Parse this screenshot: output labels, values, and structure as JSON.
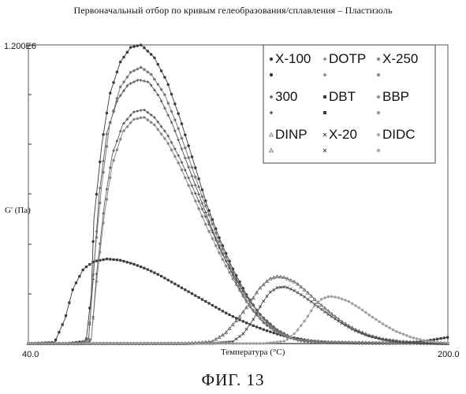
{
  "header": {
    "title": "Первоначальный отбор по кривым гелеобразования/сплавления – Пластизоль"
  },
  "caption": "ФИГ. 13",
  "chart_data": {
    "type": "line",
    "title": "Первоначальный отбор по кривым гелеобразования/сплавления – Пластизоль",
    "xlabel": "Температура (°C)",
    "ylabel": "G' (Па)",
    "xlim": [
      40,
      200
    ],
    "ylim": [
      0,
      1200000
    ],
    "x_tick_labels": [
      "40.0",
      "200.0"
    ],
    "y_tick_labels": [
      "1.200E6"
    ],
    "grid": false,
    "legend_position": "top-right",
    "series": [
      {
        "name": "X-100",
        "color": "#3a3a3a",
        "marker": "circle",
        "points": [
          [
            40,
            0
          ],
          [
            55,
            1000
          ],
          [
            62,
            10000
          ],
          [
            64,
            200000
          ],
          [
            65,
            500000
          ],
          [
            68,
            800000
          ],
          [
            71,
            1000000
          ],
          [
            75,
            1130000
          ],
          [
            79,
            1190000
          ],
          [
            83,
            1200000
          ],
          [
            88,
            1150000
          ],
          [
            93,
            1050000
          ],
          [
            98,
            900000
          ],
          [
            103,
            730000
          ],
          [
            108,
            560000
          ],
          [
            113,
            420000
          ],
          [
            118,
            300000
          ],
          [
            123,
            200000
          ],
          [
            128,
            120000
          ],
          [
            133,
            65000
          ],
          [
            138,
            30000
          ],
          [
            145,
            10000
          ],
          [
            155,
            3000
          ],
          [
            170,
            1000
          ],
          [
            200,
            0
          ]
        ]
      },
      {
        "name": "DOTP",
        "color": "#555555",
        "marker": "plus",
        "points": [
          [
            40,
            0
          ],
          [
            60,
            500
          ],
          [
            63,
            20000
          ],
          [
            65,
            300000
          ],
          [
            67,
            600000
          ],
          [
            70,
            850000
          ],
          [
            74,
            980000
          ],
          [
            78,
            1040000
          ],
          [
            82,
            1060000
          ],
          [
            86,
            1050000
          ],
          [
            90,
            990000
          ],
          [
            95,
            880000
          ],
          [
            100,
            740000
          ],
          [
            105,
            600000
          ],
          [
            110,
            460000
          ],
          [
            115,
            340000
          ],
          [
            120,
            230000
          ],
          [
            125,
            140000
          ],
          [
            130,
            80000
          ],
          [
            136,
            35000
          ],
          [
            143,
            12000
          ],
          [
            155,
            3000
          ],
          [
            200,
            0
          ]
        ]
      },
      {
        "name": "X-250",
        "color": "#707070",
        "marker": "star",
        "points": [
          [
            40,
            0
          ],
          [
            60,
            600
          ],
          [
            63,
            25000
          ],
          [
            65,
            320000
          ],
          [
            68,
            640000
          ],
          [
            71,
            880000
          ],
          [
            75,
            1030000
          ],
          [
            79,
            1090000
          ],
          [
            83,
            1110000
          ],
          [
            87,
            1080000
          ],
          [
            92,
            1000000
          ],
          [
            97,
            870000
          ],
          [
            102,
            720000
          ],
          [
            107,
            570000
          ],
          [
            112,
            430000
          ],
          [
            117,
            310000
          ],
          [
            122,
            210000
          ],
          [
            128,
            120000
          ],
          [
            134,
            60000
          ],
          [
            140,
            25000
          ],
          [
            150,
            7000
          ],
          [
            200,
            0
          ]
        ]
      },
      {
        "name": "300",
        "color": "#606060",
        "marker": "diamond",
        "points": [
          [
            40,
            0
          ],
          [
            62,
            400
          ],
          [
            64,
            15000
          ],
          [
            66,
            280000
          ],
          [
            69,
            560000
          ],
          [
            72,
            760000
          ],
          [
            76,
            880000
          ],
          [
            80,
            930000
          ],
          [
            84,
            940000
          ],
          [
            88,
            910000
          ],
          [
            93,
            840000
          ],
          [
            98,
            740000
          ],
          [
            103,
            620000
          ],
          [
            108,
            500000
          ],
          [
            113,
            380000
          ],
          [
            118,
            280000
          ],
          [
            123,
            190000
          ],
          [
            129,
            110000
          ],
          [
            135,
            55000
          ],
          [
            141,
            22000
          ],
          [
            150,
            7000
          ],
          [
            200,
            0
          ]
        ]
      },
      {
        "name": "DBT",
        "color": "#3a3a3a",
        "marker": "square",
        "points": [
          [
            40,
            0
          ],
          [
            50,
            5000
          ],
          [
            54,
            100000
          ],
          [
            57,
            220000
          ],
          [
            61,
            300000
          ],
          [
            65,
            330000
          ],
          [
            70,
            340000
          ],
          [
            75,
            335000
          ],
          [
            80,
            320000
          ],
          [
            85,
            300000
          ],
          [
            90,
            275000
          ],
          [
            95,
            245000
          ],
          [
            100,
            215000
          ],
          [
            105,
            185000
          ],
          [
            110,
            155000
          ],
          [
            115,
            125000
          ],
          [
            120,
            98000
          ],
          [
            125,
            75000
          ],
          [
            130,
            55000
          ],
          [
            135,
            38000
          ],
          [
            140,
            25000
          ],
          [
            147,
            12000
          ],
          [
            155,
            5000
          ],
          [
            165,
            1500
          ],
          [
            180,
            500
          ],
          [
            190,
            8000
          ],
          [
            200,
            25000
          ]
        ]
      },
      {
        "name": "BBP",
        "color": "#808080",
        "marker": "asterisk",
        "points": [
          [
            40,
            0
          ],
          [
            61,
            800
          ],
          [
            64,
            20000
          ],
          [
            66,
            250000
          ],
          [
            69,
            520000
          ],
          [
            72,
            720000
          ],
          [
            76,
            850000
          ],
          [
            80,
            900000
          ],
          [
            84,
            910000
          ],
          [
            88,
            880000
          ],
          [
            93,
            810000
          ],
          [
            98,
            710000
          ],
          [
            103,
            590000
          ],
          [
            108,
            470000
          ],
          [
            113,
            360000
          ],
          [
            118,
            260000
          ],
          [
            123,
            170000
          ],
          [
            129,
            95000
          ],
          [
            135,
            45000
          ],
          [
            142,
            16000
          ],
          [
            152,
            5000
          ],
          [
            200,
            0
          ]
        ]
      },
      {
        "name": "DINP",
        "color": "#6a6a6a",
        "marker": "triangle",
        "points": [
          [
            40,
            0
          ],
          [
            100,
            500
          ],
          [
            110,
            8000
          ],
          [
            115,
            40000
          ],
          [
            120,
            100000
          ],
          [
            125,
            170000
          ],
          [
            128,
            220000
          ],
          [
            132,
            260000
          ],
          [
            135,
            270000
          ],
          [
            138,
            265000
          ],
          [
            142,
            245000
          ],
          [
            146,
            210000
          ],
          [
            150,
            170000
          ],
          [
            155,
            125000
          ],
          [
            160,
            85000
          ],
          [
            165,
            55000
          ],
          [
            170,
            33000
          ],
          [
            175,
            18000
          ],
          [
            182,
            8000
          ],
          [
            190,
            3000
          ],
          [
            200,
            0
          ]
        ]
      },
      {
        "name": "X-20",
        "color": "#4a4a4a",
        "marker": "cross",
        "points": [
          [
            40,
            0
          ],
          [
            110,
            500
          ],
          [
            118,
            8000
          ],
          [
            122,
            40000
          ],
          [
            126,
            100000
          ],
          [
            129,
            160000
          ],
          [
            132,
            205000
          ],
          [
            135,
            225000
          ],
          [
            138,
            228000
          ],
          [
            141,
            215000
          ],
          [
            145,
            190000
          ],
          [
            149,
            160000
          ],
          [
            154,
            120000
          ],
          [
            159,
            85000
          ],
          [
            164,
            55000
          ],
          [
            169,
            33000
          ],
          [
            175,
            17000
          ],
          [
            182,
            7000
          ],
          [
            190,
            2000
          ],
          [
            200,
            0
          ]
        ]
      },
      {
        "name": "DIDC",
        "color": "#9a9a9a",
        "marker": "star",
        "points": [
          [
            40,
            0
          ],
          [
            130,
            500
          ],
          [
            138,
            10000
          ],
          [
            142,
            45000
          ],
          [
            146,
            100000
          ],
          [
            149,
            150000
          ],
          [
            152,
            180000
          ],
          [
            155,
            190000
          ],
          [
            158,
            185000
          ],
          [
            162,
            170000
          ],
          [
            166,
            145000
          ],
          [
            170,
            115000
          ],
          [
            175,
            80000
          ],
          [
            180,
            50000
          ],
          [
            186,
            25000
          ],
          [
            192,
            10000
          ],
          [
            200,
            2000
          ]
        ]
      }
    ]
  }
}
